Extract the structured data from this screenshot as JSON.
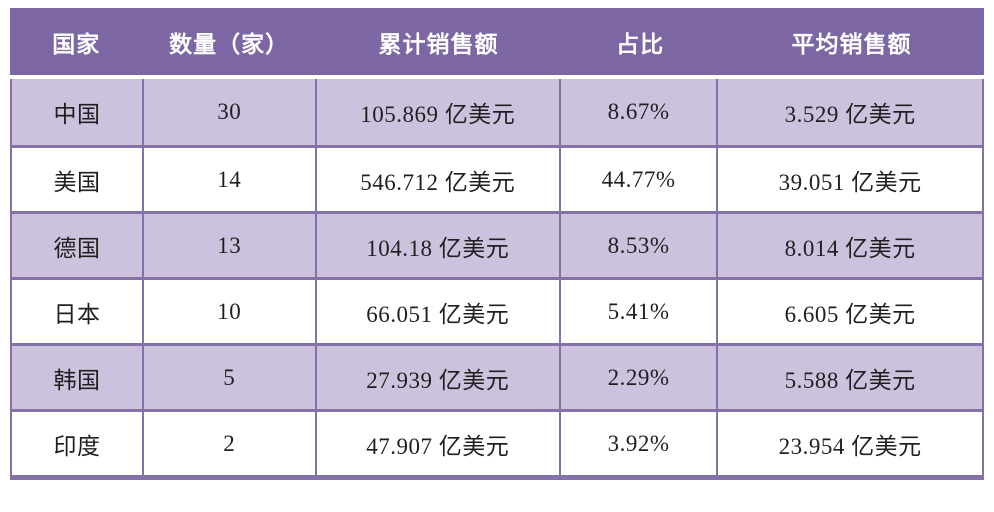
{
  "colors": {
    "header_bg": "#7c66a4",
    "row_shaded_bg": "#cdc2de",
    "row_plain_bg": "#ffffff",
    "grid_line": "#8471a8",
    "header_text": "#ffffff",
    "body_text": "#1f1f1f"
  },
  "chart_data": {
    "type": "table",
    "columns": [
      "国家",
      "数量（家）",
      "累计销售额",
      "占比",
      "平均销售额"
    ],
    "rows": [
      [
        "中国",
        "30",
        "105.869 亿美元",
        "8.67%",
        "3.529 亿美元"
      ],
      [
        "美国",
        "14",
        "546.712 亿美元",
        "44.77%",
        "39.051 亿美元"
      ],
      [
        "德国",
        "13",
        "104.18 亿美元",
        "8.53%",
        "8.014 亿美元"
      ],
      [
        "日本",
        "10",
        "66.051 亿美元",
        "5.41%",
        "6.605 亿美元"
      ],
      [
        "韩国",
        "5",
        "27.939 亿美元",
        "2.29%",
        "5.588 亿美元"
      ],
      [
        "印度",
        "2",
        "47.907 亿美元",
        "3.92%",
        "23.954 亿美元"
      ]
    ]
  }
}
